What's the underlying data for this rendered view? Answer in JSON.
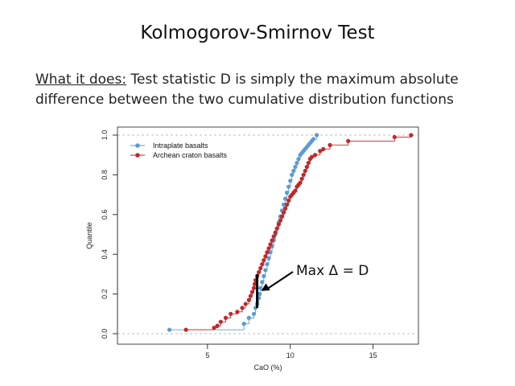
{
  "slide": {
    "title": "Kolmogorov-Smirnov Test",
    "desc_label": "What it does:",
    "desc_line1": "  Test statistic D is simply the maximum absolute",
    "desc_line2": "difference between the two cumulative distribution functions"
  },
  "colors": {
    "intraplate": "#5b9bd5",
    "archean": "#c0282a",
    "axis": "#333333",
    "ref_line": "#aaaaaa"
  },
  "chart_data": {
    "type": "line",
    "title": "",
    "xlabel": "CaO (%)",
    "ylabel": "Quantile",
    "xlim": [
      0,
      17.5
    ],
    "ylim": [
      0,
      1.0
    ],
    "xticks": [
      5,
      10,
      15
    ],
    "yticks": [
      "0.0",
      "0.2",
      "0.4",
      "0.6",
      "0.8",
      "1.0"
    ],
    "legend_position": "top-left",
    "reference_lines": [
      0.0,
      1.0
    ],
    "series": [
      {
        "name": "Intraplate basalts",
        "marker": "circle",
        "x": [
          2.7,
          7.2,
          7.5,
          7.8,
          7.9,
          8.0,
          8.1,
          8.15,
          8.2,
          8.3,
          8.4,
          8.5,
          8.6,
          8.7,
          8.8,
          8.9,
          9.0,
          9.1,
          9.2,
          9.3,
          9.4,
          9.5,
          9.6,
          9.7,
          9.8,
          9.9,
          10.0,
          10.1,
          10.2,
          10.3,
          10.4,
          10.5,
          10.6,
          10.7,
          10.8,
          10.9,
          11.0,
          11.1,
          11.2,
          11.3,
          11.4,
          11.6
        ],
        "y": [
          0.02,
          0.05,
          0.08,
          0.1,
          0.13,
          0.15,
          0.18,
          0.2,
          0.23,
          0.26,
          0.29,
          0.32,
          0.35,
          0.38,
          0.41,
          0.44,
          0.47,
          0.5,
          0.53,
          0.56,
          0.59,
          0.62,
          0.65,
          0.68,
          0.71,
          0.74,
          0.77,
          0.8,
          0.82,
          0.84,
          0.86,
          0.88,
          0.9,
          0.91,
          0.92,
          0.93,
          0.94,
          0.95,
          0.96,
          0.97,
          0.98,
          1.0
        ]
      },
      {
        "name": "Archean craton basalts",
        "marker": "circle",
        "x": [
          3.7,
          5.4,
          5.6,
          5.8,
          6.1,
          6.4,
          6.8,
          7.1,
          7.3,
          7.5,
          7.6,
          7.7,
          7.8,
          7.85,
          7.9,
          8.0,
          8.1,
          8.2,
          8.3,
          8.4,
          8.5,
          8.6,
          8.7,
          8.8,
          8.9,
          9.0,
          9.1,
          9.2,
          9.3,
          9.4,
          9.5,
          9.6,
          9.7,
          9.8,
          9.9,
          10.0,
          10.1,
          10.2,
          10.3,
          10.4,
          10.5,
          10.6,
          10.7,
          10.8,
          10.9,
          11.0,
          11.1,
          11.2,
          11.3,
          11.5,
          11.8,
          12.0,
          12.4,
          13.5,
          16.3,
          17.3
        ],
        "y": [
          0.02,
          0.03,
          0.04,
          0.06,
          0.08,
          0.1,
          0.11,
          0.13,
          0.15,
          0.17,
          0.19,
          0.21,
          0.23,
          0.25,
          0.27,
          0.29,
          0.31,
          0.33,
          0.35,
          0.37,
          0.39,
          0.41,
          0.43,
          0.45,
          0.47,
          0.49,
          0.51,
          0.53,
          0.55,
          0.57,
          0.59,
          0.61,
          0.63,
          0.65,
          0.67,
          0.69,
          0.7,
          0.71,
          0.72,
          0.74,
          0.75,
          0.76,
          0.78,
          0.8,
          0.82,
          0.84,
          0.86,
          0.88,
          0.89,
          0.9,
          0.92,
          0.93,
          0.95,
          0.97,
          0.99,
          1.0
        ]
      }
    ],
    "annotation": {
      "text": "Max Δ = D",
      "d_x": 8.0,
      "d_y_low": 0.13,
      "d_y_high": 0.3
    }
  }
}
